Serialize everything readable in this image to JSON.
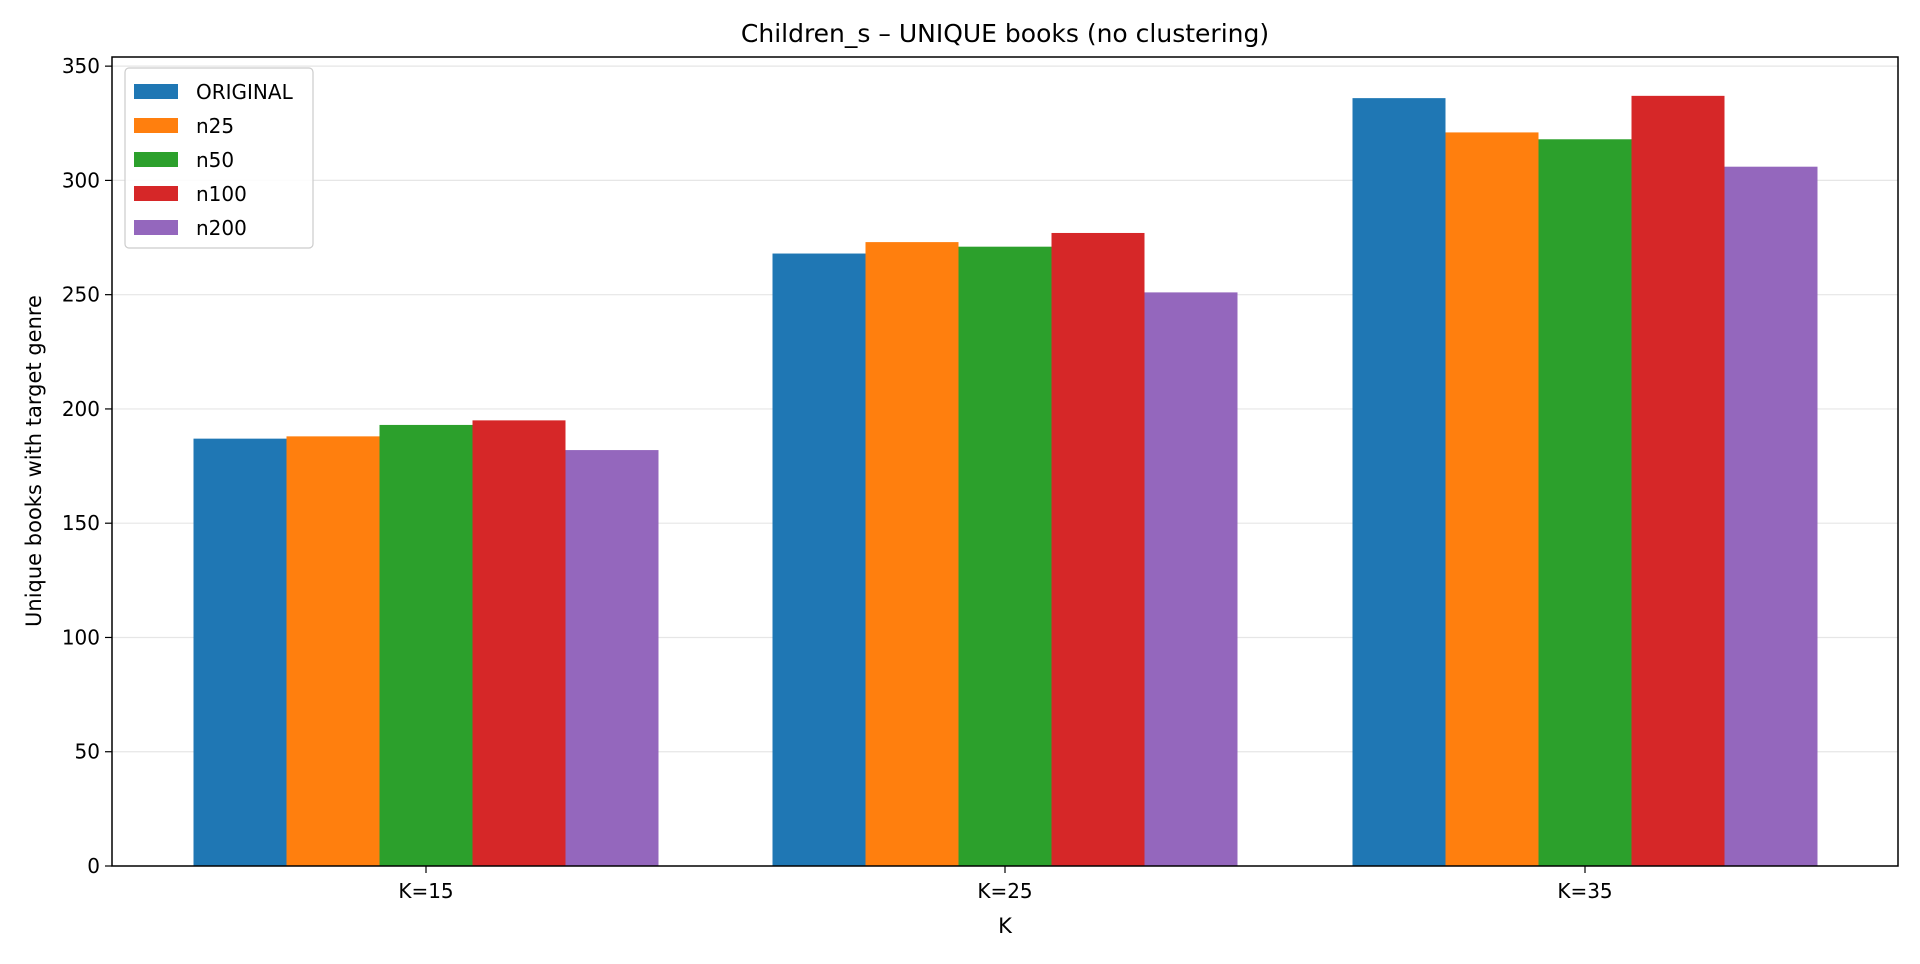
{
  "chart_data": {
    "type": "bar",
    "title": "Children_s – UNIQUE books (no clustering)",
    "xlabel": "K",
    "ylabel": "Unique books with target genre",
    "categories": [
      "K=15",
      "K=25",
      "K=35"
    ],
    "series": [
      {
        "name": "ORIGINAL",
        "color": "#1f77b4",
        "values": [
          187,
          268,
          336
        ]
      },
      {
        "name": "n25",
        "color": "#ff7f0e",
        "values": [
          188,
          273,
          321
        ]
      },
      {
        "name": "n50",
        "color": "#2ca02c",
        "values": [
          193,
          271,
          318
        ]
      },
      {
        "name": "n100",
        "color": "#d62728",
        "values": [
          195,
          277,
          337
        ]
      },
      {
        "name": "n200",
        "color": "#9467bd",
        "values": [
          182,
          251,
          306
        ]
      }
    ],
    "ylim": [
      0,
      354
    ],
    "yticks": [
      0,
      50,
      100,
      150,
      200,
      250,
      300,
      350
    ],
    "grid": "y-axis",
    "legend_position": "top-left"
  }
}
